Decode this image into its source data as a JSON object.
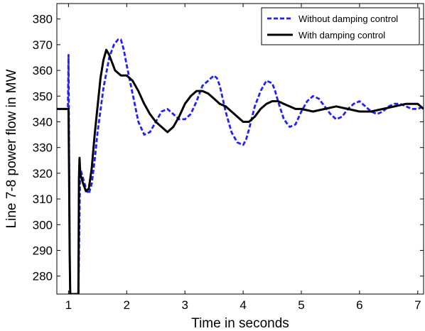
{
  "chart_data": {
    "type": "line",
    "xlabel": "Time in seconds",
    "ylabel": "Line 7-8 power flow in MW",
    "xlim": [
      0.8,
      7.1
    ],
    "ylim": [
      273,
      386
    ],
    "xticks": [
      1,
      2,
      3,
      4,
      5,
      6,
      7
    ],
    "yticks": [
      280,
      290,
      300,
      310,
      320,
      330,
      340,
      350,
      360,
      370,
      380
    ],
    "grid": false,
    "legend_position": "top-right",
    "series": [
      {
        "name": "Without damping control",
        "color": "#1f1fff",
        "style": "dashed",
        "x": [
          0.8,
          0.99,
          1.0,
          1.01,
          1.02,
          1.03,
          1.05,
          1.08,
          1.12,
          1.17,
          1.2,
          1.25,
          1.3,
          1.35,
          1.4,
          1.45,
          1.5,
          1.6,
          1.7,
          1.78,
          1.85,
          1.9,
          1.95,
          2.0,
          2.1,
          2.2,
          2.3,
          2.4,
          2.5,
          2.6,
          2.7,
          2.8,
          2.9,
          3.0,
          3.1,
          3.2,
          3.3,
          3.4,
          3.5,
          3.55,
          3.6,
          3.7,
          3.8,
          3.9,
          4.0,
          4.05,
          4.1,
          4.2,
          4.3,
          4.4,
          4.5,
          4.55,
          4.6,
          4.7,
          4.8,
          4.9,
          5.0,
          5.1,
          5.2,
          5.3,
          5.4,
          5.5,
          5.6,
          5.7,
          5.8,
          5.9,
          6.0,
          6.1,
          6.2,
          6.3,
          6.4,
          6.5,
          6.6,
          6.7,
          6.8,
          6.9,
          7.0,
          7.1
        ],
        "y": [
          345,
          345,
          366,
          330,
          290,
          273,
          273,
          273,
          273,
          273,
          322,
          318,
          314,
          312,
          316,
          325,
          336,
          353,
          365,
          370,
          372,
          372,
          368,
          362,
          351,
          340,
          335,
          336,
          340,
          344,
          345,
          343,
          341,
          341,
          343,
          348,
          354,
          356,
          358,
          357,
          354,
          344,
          336,
          332,
          331,
          333,
          337,
          346,
          352,
          356,
          355,
          352,
          348,
          341,
          338,
          339,
          344,
          348,
          350,
          349,
          346,
          343,
          341,
          342,
          345,
          347,
          348,
          346,
          344,
          343,
          344,
          346,
          347,
          347,
          346,
          345,
          345,
          346
        ]
      },
      {
        "name": "With damping control",
        "color": "#000000",
        "style": "solid",
        "x": [
          0.8,
          1.0,
          1.01,
          1.02,
          1.03,
          1.1,
          1.17,
          1.18,
          1.19,
          1.2,
          1.25,
          1.3,
          1.35,
          1.4,
          1.45,
          1.5,
          1.55,
          1.6,
          1.65,
          1.7,
          1.8,
          1.9,
          2.0,
          2.1,
          2.2,
          2.3,
          2.4,
          2.5,
          2.6,
          2.7,
          2.8,
          2.9,
          3.0,
          3.1,
          3.2,
          3.3,
          3.4,
          3.5,
          3.6,
          3.7,
          3.8,
          3.9,
          4.0,
          4.1,
          4.2,
          4.3,
          4.4,
          4.5,
          4.6,
          4.7,
          4.8,
          4.9,
          5.0,
          5.2,
          5.4,
          5.6,
          5.8,
          6.0,
          6.2,
          6.4,
          6.6,
          6.8,
          7.0,
          7.1
        ],
        "y": [
          345,
          345,
          320,
          290,
          273,
          273,
          273,
          318,
          326,
          320,
          316,
          313,
          314,
          322,
          335,
          346,
          357,
          364,
          368,
          366,
          360,
          358,
          358,
          356,
          352,
          347,
          343,
          340,
          338,
          336,
          338,
          342,
          347,
          350,
          352,
          352,
          351,
          349,
          347,
          346,
          344,
          342,
          340,
          340,
          342,
          345,
          347,
          348,
          348,
          347,
          346,
          345,
          345,
          344,
          345,
          346,
          345,
          344,
          344,
          345,
          346,
          347,
          347,
          345
        ]
      }
    ]
  }
}
